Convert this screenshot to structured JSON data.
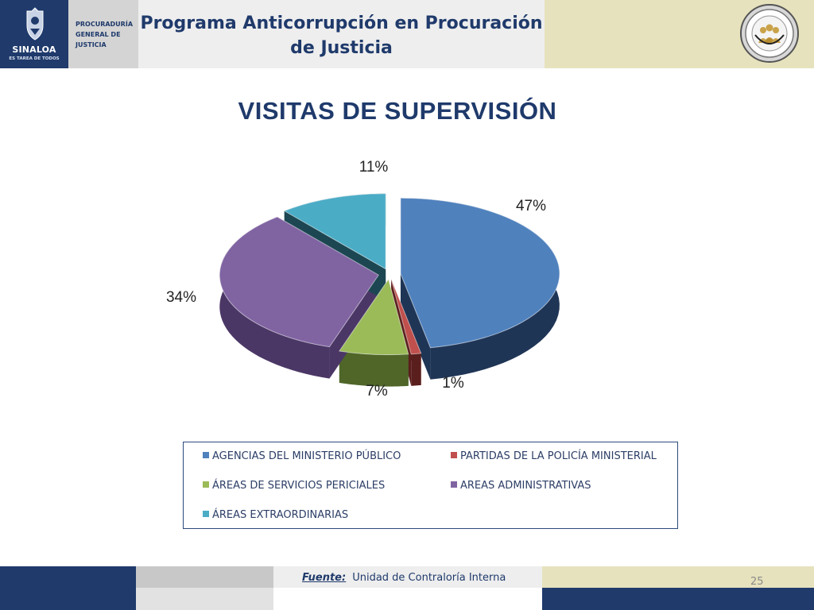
{
  "header": {
    "logo_word": "SINALOA",
    "logo_tagline": "ES TAREA DE TODOS",
    "department": "PROCURADURÍA\nGENERAL DE\nJUSTICIA",
    "title_line1": "Programa Anticorrupción en Procuración",
    "title_line2": "de Justicia"
  },
  "chart_data": {
    "type": "pie",
    "title": "VISITAS DE SUPERVISIÓN",
    "slices": [
      {
        "label": "AGENCIAS DEL MINISTERIO PÚBLICO",
        "value": 47,
        "display": "47%",
        "color": "#4f81bd",
        "side": "#1f3556"
      },
      {
        "label": "PARTIDAS DE LA POLICÍA MINISTERIAL",
        "value": 1,
        "display": "1%",
        "color": "#c0504d",
        "side": "#5a1e1c"
      },
      {
        "label": "ÁREAS DE SERVICIOS PERICIALES",
        "value": 7,
        "display": "7%",
        "color": "#9bbb59",
        "side": "#4f6628"
      },
      {
        "label": "AREAS ADMINISTRATIVAS",
        "value": 34,
        "display": "34%",
        "color": "#8064a2",
        "side": "#4b3766"
      },
      {
        "label": "ÁREAS EXTRAORDINARIAS",
        "value": 11,
        "display": "11%",
        "color": "#4bacc6",
        "side": "#1c4752"
      }
    ],
    "legend_position": "bottom"
  },
  "footer": {
    "source_label": "Fuente:",
    "source_text": "Unidad de Contraloría Interna",
    "page_number": "25"
  }
}
